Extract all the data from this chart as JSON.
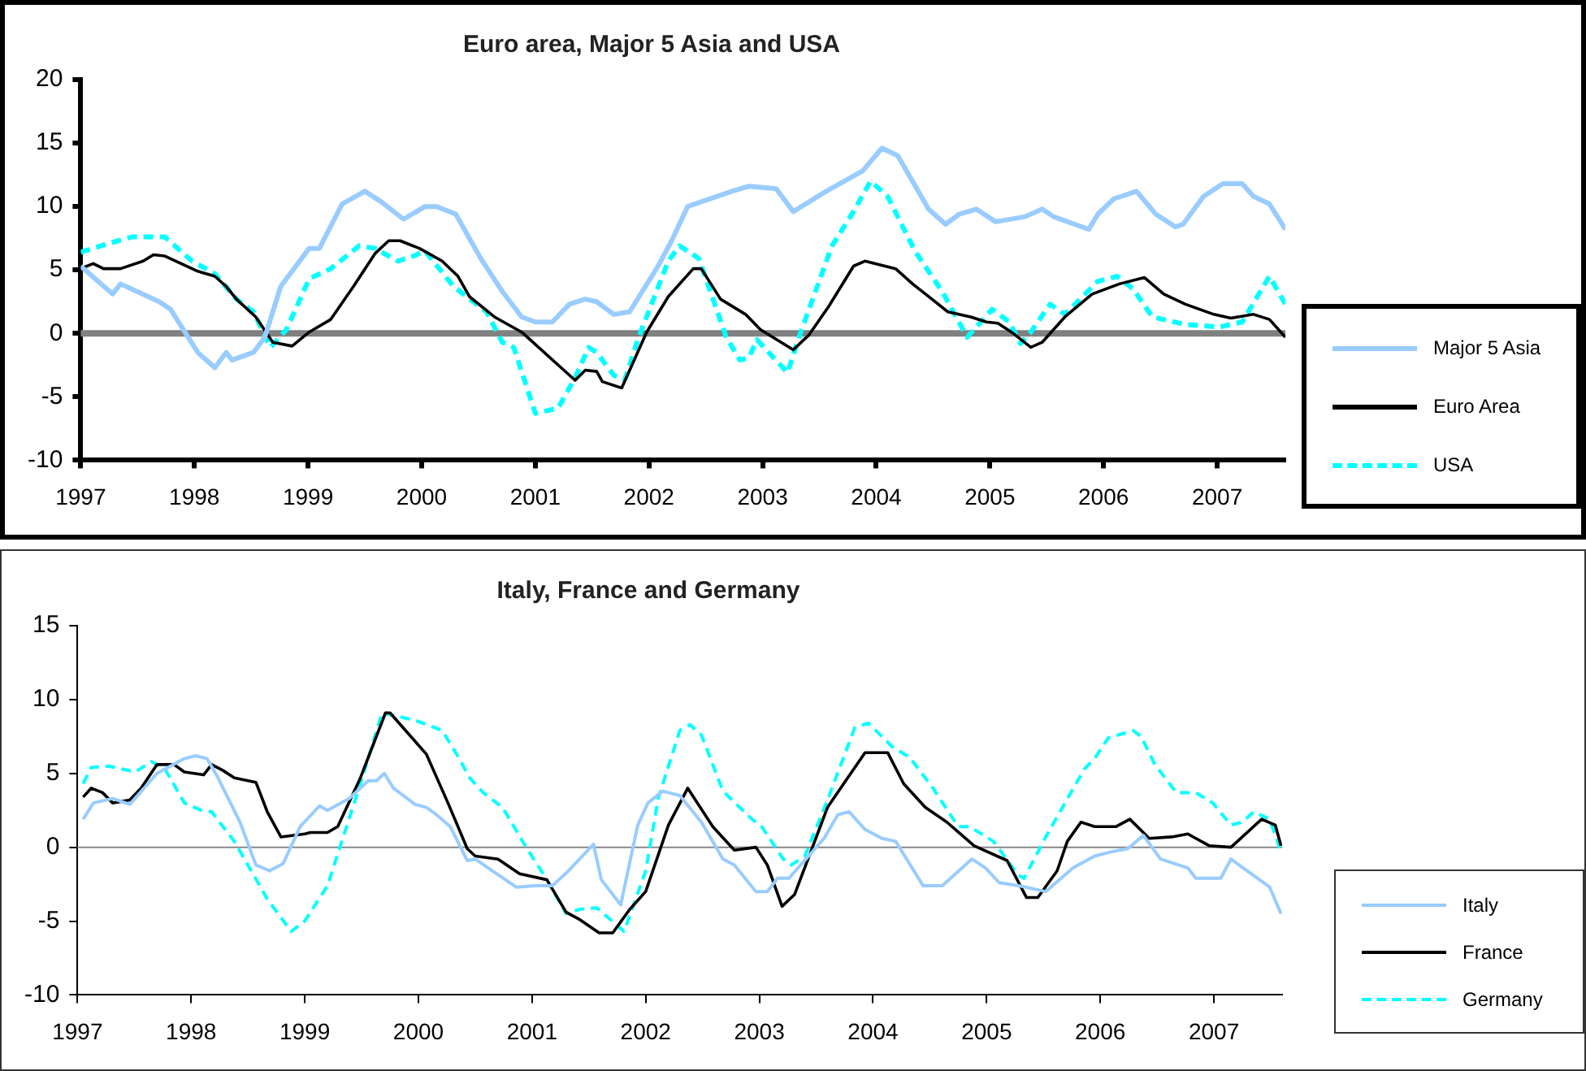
{
  "chart_data": [
    {
      "type": "line",
      "title": "Euro area, Major 5 Asia and USA",
      "xlim": [
        1997,
        2007.6
      ],
      "xticks": [
        1997,
        1998,
        1999,
        2000,
        2001,
        2002,
        2003,
        2004,
        2005,
        2006,
        2007
      ],
      "ylim": [
        -10,
        20
      ],
      "yticks": [
        -10,
        -5,
        0,
        5,
        10,
        15,
        20
      ],
      "grid": false,
      "legend": "right",
      "marker": "none",
      "ref_lines": [
        {
          "axis": "y",
          "value": 0,
          "color": "#808080"
        }
      ],
      "series": [
        {
          "name": "Major 5 Asia",
          "color": "#99ccff",
          "line_style": "solid",
          "x": [
            1997.0,
            1997.28,
            1997.35,
            1997.69,
            1997.79,
            1998.03,
            1998.18,
            1998.28,
            1998.33,
            1998.52,
            1998.62,
            1998.76,
            1998.86,
            1999.01,
            1999.1,
            1999.3,
            1999.5,
            1999.64,
            1999.84,
            2000.03,
            2000.13,
            2000.3,
            2000.52,
            2000.71,
            2000.88,
            2001.0,
            2001.15,
            2001.3,
            2001.44,
            2001.54,
            2001.69,
            2001.83,
            2002.08,
            2002.2,
            2002.34,
            2002.73,
            2002.88,
            2003.12,
            2003.27,
            2003.56,
            2003.88,
            2004.05,
            2004.19,
            2004.46,
            2004.61,
            2004.73,
            2004.88,
            2005.05,
            2005.31,
            2005.46,
            2005.56,
            2005.87,
            2005.95,
            2006.09,
            2006.29,
            2006.46,
            2006.63,
            2006.7,
            2006.88,
            2007.05,
            2007.22,
            2007.32,
            2007.46,
            2007.6
          ],
          "values": [
            5.3,
            3.1,
            3.9,
            2.5,
            1.9,
            -1.5,
            -2.7,
            -1.5,
            -2.1,
            -1.5,
            -0.3,
            3.7,
            4.9,
            6.7,
            6.7,
            10.2,
            11.2,
            10.4,
            9.0,
            10.0,
            10.0,
            9.4,
            5.9,
            3.3,
            1.3,
            0.9,
            0.9,
            2.3,
            2.7,
            2.5,
            1.5,
            1.7,
            5.3,
            7.3,
            10.0,
            11.2,
            11.6,
            11.4,
            9.6,
            11.2,
            12.8,
            14.6,
            14.0,
            9.8,
            8.6,
            9.4,
            9.8,
            8.8,
            9.2,
            9.8,
            9.2,
            8.2,
            9.4,
            10.6,
            11.2,
            9.4,
            8.4,
            8.6,
            10.8,
            11.8,
            11.8,
            10.8,
            10.2,
            8.2
          ]
        },
        {
          "name": "Euro Area",
          "color": "#000000",
          "line_style": "solid",
          "x": [
            1997.0,
            1997.11,
            1997.2,
            1997.35,
            1997.55,
            1997.64,
            1997.74,
            1998.03,
            1998.18,
            1998.28,
            1998.37,
            1998.54,
            1998.69,
            1998.86,
            1999.01,
            1999.2,
            1999.4,
            1999.59,
            1999.71,
            1999.81,
            1999.98,
            2000.18,
            2000.32,
            2000.42,
            2000.64,
            2000.88,
            2001.35,
            2001.44,
            2001.54,
            2001.59,
            2001.76,
            2001.98,
            2002.17,
            2002.39,
            2002.46,
            2002.63,
            2002.85,
            2002.98,
            2003.27,
            2003.41,
            2003.58,
            2003.8,
            2003.9,
            2004.17,
            2004.32,
            2004.49,
            2004.63,
            2004.83,
            2004.97,
            2005.07,
            2005.19,
            2005.36,
            2005.46,
            2005.66,
            2005.9,
            2006.14,
            2006.36,
            2006.53,
            2006.72,
            2006.97,
            2007.12,
            2007.32,
            2007.46,
            2007.6
          ],
          "values": [
            5.1,
            5.5,
            5.1,
            5.1,
            5.7,
            6.2,
            6.1,
            4.9,
            4.5,
            3.7,
            2.7,
            1.3,
            -0.7,
            -1.0,
            0.1,
            1.1,
            3.7,
            6.3,
            7.3,
            7.3,
            6.7,
            5.7,
            4.5,
            2.9,
            1.3,
            0.1,
            -3.7,
            -2.9,
            -3.0,
            -3.8,
            -4.3,
            0.1,
            2.9,
            5.1,
            5.1,
            2.7,
            1.5,
            0.3,
            -1.3,
            -0.1,
            2.1,
            5.3,
            5.7,
            5.1,
            3.9,
            2.7,
            1.7,
            1.3,
            0.9,
            0.8,
            0.1,
            -1.1,
            -0.7,
            1.3,
            3.1,
            3.9,
            4.4,
            3.1,
            2.3,
            1.5,
            1.2,
            1.5,
            1.1,
            -0.3
          ]
        },
        {
          "name": "USA",
          "color": "#00ffff",
          "line_style": "dashed",
          "x": [
            1997.0,
            1997.25,
            1997.45,
            1997.74,
            1997.98,
            1998.18,
            1998.37,
            1998.52,
            1998.67,
            1998.81,
            1999.01,
            1999.2,
            1999.45,
            1999.59,
            1999.79,
            1999.93,
            2000.03,
            2000.28,
            2000.57,
            2000.71,
            2000.81,
            2001.0,
            2001.2,
            2001.35,
            2001.47,
            2001.54,
            2001.69,
            2001.79,
            2001.91,
            2002.17,
            2002.27,
            2002.44,
            2002.68,
            2002.8,
            2002.88,
            2002.95,
            2003.22,
            2003.32,
            2003.61,
            2003.8,
            2003.95,
            2004.1,
            2004.34,
            2004.58,
            2004.8,
            2005.02,
            2005.17,
            2005.27,
            2005.36,
            2005.53,
            2005.66,
            2005.95,
            2006.12,
            2006.26,
            2006.43,
            2006.72,
            2007.02,
            2007.22,
            2007.46,
            2007.6
          ],
          "values": [
            6.4,
            7.1,
            7.6,
            7.6,
            5.7,
            4.7,
            2.7,
            1.7,
            -1.1,
            0.3,
            4.3,
            5.1,
            6.9,
            6.7,
            5.7,
            6.1,
            6.5,
            3.7,
            1.7,
            -0.7,
            -1.1,
            -6.3,
            -5.9,
            -3.5,
            -1.1,
            -1.5,
            -3.3,
            -3.6,
            -0.3,
            5.7,
            6.9,
            5.9,
            -0.3,
            -2.1,
            -1.9,
            -0.5,
            -3.1,
            -0.3,
            6.9,
            9.6,
            12.0,
            10.8,
            6.5,
            3.3,
            -0.3,
            1.9,
            0.9,
            -0.8,
            0.1,
            2.3,
            1.5,
            4.1,
            4.5,
            3.5,
            1.3,
            0.7,
            0.5,
            0.9,
            4.5,
            2.3
          ]
        }
      ]
    },
    {
      "type": "line",
      "title": "Italy, France and Germany",
      "xlim": [
        1997,
        2007.6
      ],
      "xticks": [
        1997,
        1998,
        1999,
        2000,
        2001,
        2002,
        2003,
        2004,
        2005,
        2006,
        2007
      ],
      "ylim": [
        -10,
        15
      ],
      "yticks": [
        -10,
        -5,
        0,
        5,
        10,
        15
      ],
      "grid": false,
      "legend": "right",
      "marker": "none",
      "ref_lines": [
        {
          "axis": "y",
          "value": 0,
          "color": "#888888"
        }
      ],
      "series": [
        {
          "name": "Italy",
          "color": "#99ccff",
          "line_style": "solid",
          "x": [
            1997.05,
            1997.14,
            1997.31,
            1997.46,
            1997.7,
            1997.94,
            1998.04,
            1998.14,
            1998.23,
            1998.43,
            1998.57,
            1998.69,
            1998.81,
            1998.96,
            1999.13,
            1999.2,
            1999.39,
            1999.56,
            1999.63,
            1999.7,
            1999.78,
            1999.97,
            2000.07,
            2000.16,
            2000.28,
            2000.43,
            2000.5,
            2000.65,
            2000.86,
            2001.03,
            2001.18,
            2001.32,
            2001.54,
            2001.61,
            2001.78,
            2001.93,
            2002.02,
            2002.15,
            2002.3,
            2002.49,
            2002.68,
            2002.78,
            2002.97,
            2003.07,
            2003.16,
            2003.26,
            2003.57,
            2003.69,
            2003.79,
            2003.93,
            2004.08,
            2004.2,
            2004.44,
            2004.61,
            2004.87,
            2004.99,
            2005.11,
            2005.28,
            2005.52,
            2005.76,
            2005.95,
            2006.1,
            2006.24,
            2006.38,
            2006.53,
            2006.77,
            2006.84,
            2007.06,
            2007.15,
            2007.49,
            2007.59
          ],
          "values": [
            1.9,
            3.0,
            3.3,
            2.9,
            5.0,
            6.0,
            6.2,
            6.0,
            4.8,
            1.7,
            -1.2,
            -1.6,
            -1.1,
            1.4,
            2.8,
            2.5,
            3.3,
            4.5,
            4.5,
            5.0,
            4.0,
            2.9,
            2.7,
            2.2,
            1.4,
            -0.9,
            -0.8,
            -1.6,
            -2.7,
            -2.6,
            -2.6,
            -1.6,
            0.2,
            -2.2,
            -3.9,
            1.5,
            3.0,
            3.8,
            3.5,
            1.7,
            -0.8,
            -1.2,
            -3.0,
            -3.0,
            -2.1,
            -2.1,
            0.6,
            2.2,
            2.4,
            1.2,
            0.6,
            0.4,
            -2.6,
            -2.6,
            -0.8,
            -1.4,
            -2.4,
            -2.6,
            -3.0,
            -1.4,
            -0.6,
            -0.3,
            -0.1,
            0.8,
            -0.8,
            -1.4,
            -2.1,
            -2.1,
            -0.8,
            -2.7,
            -4.5
          ]
        },
        {
          "name": "France",
          "color": "#000000",
          "line_style": "solid",
          "x": [
            1997.05,
            1997.12,
            1997.22,
            1997.31,
            1997.46,
            1997.56,
            1997.7,
            1997.85,
            1997.94,
            1998.11,
            1998.18,
            1998.28,
            1998.38,
            1998.57,
            1998.67,
            1998.79,
            1999.0,
            1999.05,
            1999.2,
            1999.29,
            1999.49,
            1999.71,
            1999.75,
            2000.07,
            2000.26,
            2000.43,
            2000.5,
            2000.7,
            2000.89,
            2001.13,
            2001.3,
            2001.42,
            2001.59,
            2001.71,
            2001.86,
            2002.0,
            2002.2,
            2002.37,
            2002.59,
            2002.78,
            2002.97,
            2003.07,
            2003.2,
            2003.31,
            2003.6,
            2003.76,
            2003.93,
            2004.13,
            2004.27,
            2004.46,
            2004.65,
            2004.89,
            2005.18,
            2005.35,
            2005.45,
            2005.62,
            2005.71,
            2005.83,
            2005.95,
            2006.14,
            2006.26,
            2006.43,
            2006.63,
            2006.77,
            2006.96,
            2007.15,
            2007.42,
            2007.54,
            2007.59
          ],
          "values": [
            3.4,
            4.0,
            3.7,
            3.0,
            3.2,
            4.0,
            5.6,
            5.6,
            5.1,
            4.9,
            5.6,
            5.2,
            4.7,
            4.4,
            2.4,
            0.7,
            0.9,
            1.0,
            1.0,
            1.4,
            4.7,
            9.1,
            9.1,
            6.3,
            3.0,
            -0.1,
            -0.6,
            -0.8,
            -1.8,
            -2.2,
            -4.4,
            -4.9,
            -5.8,
            -5.8,
            -4.2,
            -3.0,
            1.5,
            4.0,
            1.4,
            -0.2,
            0.0,
            -1.2,
            -4.0,
            -3.2,
            2.7,
            4.5,
            6.4,
            6.4,
            4.3,
            2.7,
            1.7,
            0.1,
            -0.9,
            -3.4,
            -3.4,
            -1.6,
            0.4,
            1.7,
            1.4,
            1.4,
            1.9,
            0.6,
            0.7,
            0.9,
            0.1,
            0.0,
            1.9,
            1.5,
            0.1
          ]
        },
        {
          "name": "Germany",
          "color": "#00ffff",
          "line_style": "dashed",
          "x": [
            1997.05,
            1997.12,
            1997.27,
            1997.51,
            1997.65,
            1997.77,
            1997.94,
            1998.09,
            1998.18,
            1998.38,
            1998.67,
            1998.88,
            1999.0,
            1999.2,
            1999.49,
            1999.68,
            1999.97,
            2000.21,
            2000.36,
            2000.45,
            2000.57,
            2000.74,
            2000.94,
            2001.13,
            2001.3,
            2001.42,
            2001.57,
            2001.81,
            2002.0,
            2002.11,
            2002.3,
            2002.39,
            2002.49,
            2002.68,
            2002.92,
            2003.02,
            2003.21,
            2003.28,
            2003.4,
            2003.6,
            2003.84,
            2003.96,
            2004.17,
            2004.32,
            2004.51,
            2004.75,
            2004.85,
            2005.06,
            2005.28,
            2005.33,
            2005.52,
            2005.86,
            2005.95,
            2006.07,
            2006.29,
            2006.36,
            2006.48,
            2006.67,
            2006.84,
            2006.99,
            2007.15,
            2007.25,
            2007.35,
            2007.49,
            2007.59
          ],
          "values": [
            4.3,
            5.4,
            5.5,
            5.1,
            5.8,
            5.3,
            3.0,
            2.5,
            2.4,
            0.4,
            -3.5,
            -5.7,
            -5.0,
            -2.6,
            4.3,
            9.1,
            8.6,
            7.9,
            6.0,
            4.7,
            3.7,
            2.7,
            0.1,
            -2.2,
            -4.5,
            -4.2,
            -4.1,
            -5.7,
            -1.6,
            3.3,
            7.9,
            8.3,
            7.6,
            3.8,
            2.0,
            1.4,
            -0.8,
            -1.2,
            -0.6,
            3.2,
            8.1,
            8.4,
            6.8,
            6.1,
            4.2,
            1.4,
            1.4,
            0.4,
            -1.9,
            -2.1,
            0.7,
            5.3,
            6.0,
            7.4,
            7.9,
            7.5,
            5.6,
            3.7,
            3.7,
            3.0,
            1.5,
            1.7,
            2.4,
            1.9,
            -0.3
          ]
        }
      ]
    }
  ]
}
